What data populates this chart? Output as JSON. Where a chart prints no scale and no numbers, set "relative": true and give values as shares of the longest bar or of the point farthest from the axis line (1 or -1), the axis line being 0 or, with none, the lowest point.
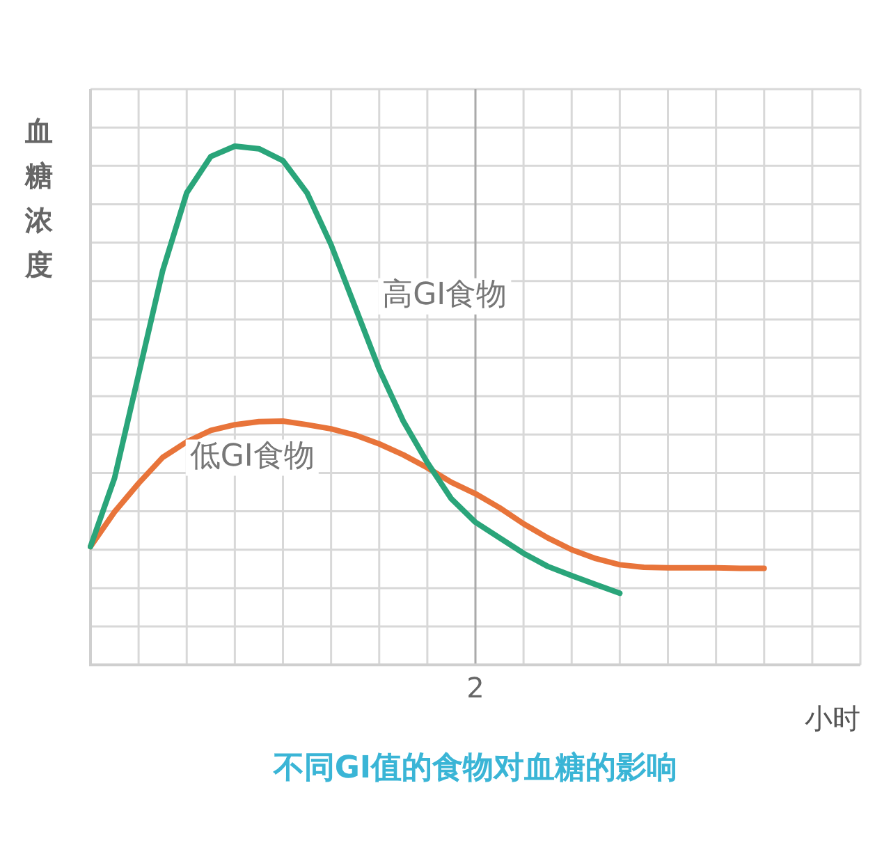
{
  "chart_data": {
    "type": "line",
    "title": "不同GI值的食物对血糖的影响",
    "xlabel": "小时",
    "ylabel": "血糖浓度",
    "relative": true,
    "grid": true,
    "legend": false,
    "marker": "none",
    "line_style": "solid",
    "annotations": [
      "2"
    ],
    "categories": [
      null,
      null,
      null,
      null,
      null,
      null,
      null,
      null,
      null,
      null,
      null,
      null,
      null,
      null,
      null,
      null,
      null,
      null,
      null,
      null,
      null,
      null,
      null,
      null,
      null,
      null,
      null,
      null,
      null,
      null,
      null,
      null,
      null
    ],
    "series": [
      {
        "name": "高GI食物",
        "color": "#2aa57a",
        "values": [
          0.228,
          0.36,
          0.56,
          0.76,
          0.91,
          0.98,
          1.0,
          0.995,
          0.972,
          0.91,
          0.81,
          0.69,
          0.57,
          0.47,
          0.39,
          0.32,
          0.275,
          0.245,
          0.215,
          0.19,
          0.172,
          0.155,
          0.138,
          null,
          null,
          null,
          null,
          null,
          null,
          null,
          null,
          null,
          null
        ]
      },
      {
        "name": "低GI食物",
        "color": "#e8743a",
        "values": [
          0.228,
          0.295,
          0.35,
          0.4,
          0.43,
          0.452,
          0.463,
          0.469,
          0.47,
          0.463,
          0.455,
          0.443,
          0.426,
          0.405,
          0.38,
          0.352,
          0.33,
          0.303,
          0.272,
          0.245,
          0.222,
          0.205,
          0.193,
          0.188,
          0.187,
          0.187,
          0.187,
          0.186,
          0.186,
          null,
          null,
          null,
          null
        ]
      }
    ]
  }
}
